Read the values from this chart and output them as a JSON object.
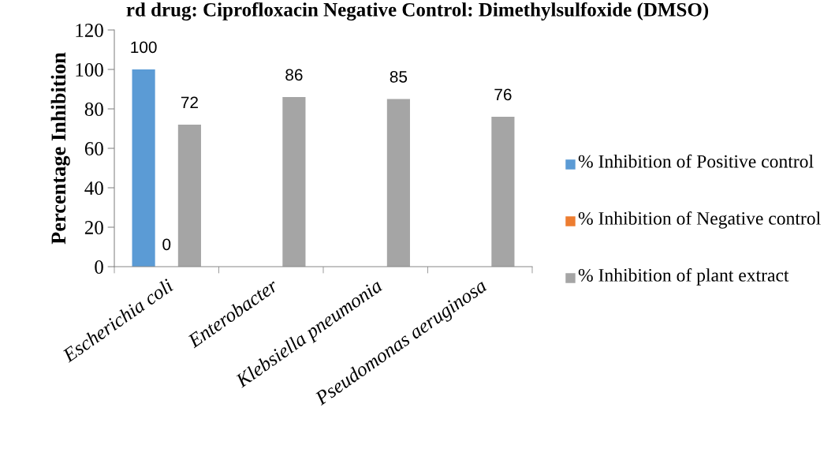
{
  "chart_data": {
    "type": "bar",
    "title": "rd drug: Ciprofloxacin Negative Control: Dimethylsulfoxide (DMSO)",
    "ylabel": "Percentage Inhibition",
    "categories": [
      "Escherichia coli",
      "Enterobacter",
      "Klebsiella pneumonia",
      "Pseudomonas aeruginosa"
    ],
    "series": [
      {
        "name": "% Inhibition of Positive control",
        "color": "#5b9bd5",
        "values": [
          100,
          null,
          null,
          null
        ],
        "value_labels": [
          "100",
          null,
          null,
          null
        ]
      },
      {
        "name": "% Inhibition of Negative control",
        "color": "#ed7d31",
        "values": [
          0,
          null,
          null,
          null
        ],
        "value_labels": [
          "0",
          null,
          null,
          null
        ]
      },
      {
        "name": "% Inhibition of plant extract",
        "color": "#a5a5a5",
        "values": [
          72,
          86,
          85,
          76
        ],
        "value_labels": [
          "72",
          "86",
          "85",
          "76"
        ]
      }
    ],
    "ylim": [
      0,
      120
    ],
    "yticks": [
      0,
      20,
      40,
      60,
      80,
      100,
      120
    ],
    "grid": false,
    "legend": "right"
  }
}
